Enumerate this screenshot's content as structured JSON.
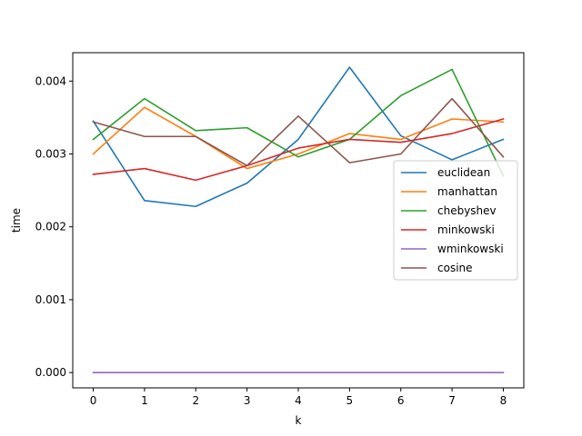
{
  "chart_data": {
    "type": "line",
    "title": "",
    "xlabel": "k",
    "ylabel": "time",
    "x": [
      0,
      1,
      2,
      3,
      4,
      5,
      6,
      7,
      8
    ],
    "xticks": [
      "0",
      "1",
      "2",
      "3",
      "4",
      "5",
      "6",
      "7",
      "8"
    ],
    "yticks": [
      "0.000",
      "0.001",
      "0.002",
      "0.003",
      "0.004"
    ],
    "xlim": [
      -0.4,
      8.4
    ],
    "ylim": [
      -0.00021,
      0.00439
    ],
    "grid": false,
    "legend_position": "center-right",
    "series": [
      {
        "name": "euclidean",
        "color": "#1f77b4",
        "values": [
          0.00345,
          0.00236,
          0.00228,
          0.0026,
          0.0032,
          0.00419,
          0.00325,
          0.00292,
          0.0032
        ]
      },
      {
        "name": "manhattan",
        "color": "#ff7f0e",
        "values": [
          0.003,
          0.00364,
          0.00324,
          0.0028,
          0.003,
          0.00328,
          0.0032,
          0.00348,
          0.00344
        ]
      },
      {
        "name": "chebyshev",
        "color": "#2ca02c",
        "values": [
          0.0032,
          0.00376,
          0.00332,
          0.00336,
          0.00296,
          0.0032,
          0.0038,
          0.00416,
          0.0027
        ]
      },
      {
        "name": "minkowski",
        "color": "#d62728",
        "values": [
          0.00272,
          0.0028,
          0.00264,
          0.00284,
          0.00308,
          0.0032,
          0.00316,
          0.00328,
          0.00348
        ]
      },
      {
        "name": "wminkowski",
        "color": "#9467bd",
        "values": [
          0.0,
          0.0,
          0.0,
          0.0,
          0.0,
          0.0,
          0.0,
          0.0,
          0.0
        ]
      },
      {
        "name": "cosine",
        "color": "#8c564b",
        "values": [
          0.00344,
          0.00324,
          0.00324,
          0.00284,
          0.00352,
          0.00288,
          0.003,
          0.00376,
          0.00296
        ]
      }
    ]
  }
}
